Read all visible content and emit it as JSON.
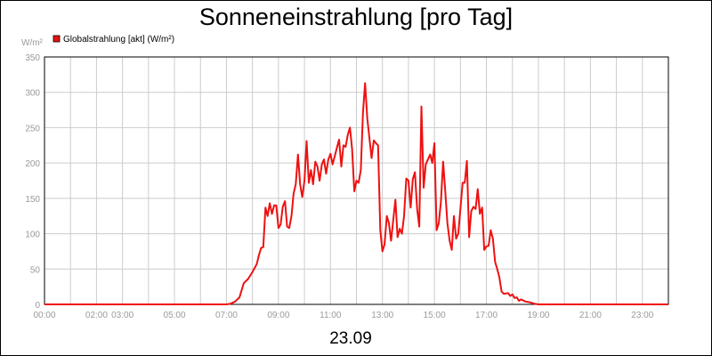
{
  "chart_data": {
    "type": "line",
    "title": "Sonneneinstrahlung [pro Tag]",
    "ylabel": "W/m²",
    "xlabel": "23.09",
    "ylim": [
      0,
      350
    ],
    "xlim": [
      "00:00",
      "24:00"
    ],
    "grid": true,
    "legend_position": "top-left",
    "y_ticks": [
      0,
      50,
      100,
      150,
      200,
      250,
      300,
      350
    ],
    "x_ticks": [
      {
        "time": "00:00",
        "label": "00:00"
      },
      {
        "time": "02:00",
        "label": "02:00"
      },
      {
        "time": "03:00",
        "label": "03:00"
      },
      {
        "time": "05:00",
        "label": "05:00"
      },
      {
        "time": "07:00",
        "label": "07:00"
      },
      {
        "time": "09:00",
        "label": "09:00"
      },
      {
        "time": "11:00",
        "label": "11:00"
      },
      {
        "time": "13:00",
        "label": "13:00"
      },
      {
        "time": "15:00",
        "label": "15:00"
      },
      {
        "time": "17:00",
        "label": "17:00"
      },
      {
        "time": "19:00",
        "label": "19:00"
      },
      {
        "time": "21:00",
        "label": "21:00"
      },
      {
        "time": "23:00",
        "label": "23:00"
      }
    ],
    "series": [
      {
        "name": "Globalstrahlung [akt] (W/m²)",
        "color": "#ee1111",
        "points": [
          [
            "00:00",
            0
          ],
          [
            "07:00",
            0
          ],
          [
            "07:10",
            1
          ],
          [
            "07:20",
            4
          ],
          [
            "07:30",
            10
          ],
          [
            "07:40",
            30
          ],
          [
            "07:50",
            36
          ],
          [
            "08:00",
            46
          ],
          [
            "08:10",
            57
          ],
          [
            "08:15",
            70
          ],
          [
            "08:20",
            80
          ],
          [
            "08:25",
            81
          ],
          [
            "08:30",
            137
          ],
          [
            "08:35",
            125
          ],
          [
            "08:40",
            143
          ],
          [
            "08:45",
            128
          ],
          [
            "08:50",
            140
          ],
          [
            "08:55",
            140
          ],
          [
            "09:00",
            108
          ],
          [
            "09:05",
            113
          ],
          [
            "09:10",
            138
          ],
          [
            "09:15",
            146
          ],
          [
            "09:20",
            110
          ],
          [
            "09:25",
            108
          ],
          [
            "09:30",
            125
          ],
          [
            "09:35",
            157
          ],
          [
            "09:40",
            170
          ],
          [
            "09:45",
            212
          ],
          [
            "09:50",
            170
          ],
          [
            "09:55",
            152
          ],
          [
            "10:00",
            175
          ],
          [
            "10:05",
            231
          ],
          [
            "10:10",
            172
          ],
          [
            "10:15",
            190
          ],
          [
            "10:20",
            170
          ],
          [
            "10:25",
            202
          ],
          [
            "10:30",
            195
          ],
          [
            "10:35",
            175
          ],
          [
            "10:40",
            198
          ],
          [
            "10:45",
            205
          ],
          [
            "10:50",
            185
          ],
          [
            "10:55",
            205
          ],
          [
            "11:00",
            213
          ],
          [
            "11:05",
            198
          ],
          [
            "11:10",
            210
          ],
          [
            "11:15",
            222
          ],
          [
            "11:20",
            233
          ],
          [
            "11:25",
            195
          ],
          [
            "11:30",
            225
          ],
          [
            "11:35",
            223
          ],
          [
            "11:40",
            240
          ],
          [
            "11:45",
            250
          ],
          [
            "11:50",
            220
          ],
          [
            "11:55",
            160
          ],
          [
            "12:00",
            175
          ],
          [
            "12:05",
            172
          ],
          [
            "12:10",
            190
          ],
          [
            "12:15",
            270
          ],
          [
            "12:20",
            313
          ],
          [
            "12:25",
            263
          ],
          [
            "12:30",
            235
          ],
          [
            "12:35",
            207
          ],
          [
            "12:40",
            232
          ],
          [
            "12:45",
            228
          ],
          [
            "12:50",
            225
          ],
          [
            "12:55",
            105
          ],
          [
            "13:00",
            75
          ],
          [
            "13:05",
            85
          ],
          [
            "13:10",
            125
          ],
          [
            "13:15",
            115
          ],
          [
            "13:20",
            90
          ],
          [
            "13:25",
            120
          ],
          [
            "13:30",
            148
          ],
          [
            "13:35",
            95
          ],
          [
            "13:40",
            107
          ],
          [
            "13:45",
            100
          ],
          [
            "13:50",
            125
          ],
          [
            "13:55",
            178
          ],
          [
            "14:00",
            175
          ],
          [
            "14:05",
            137
          ],
          [
            "14:10",
            177
          ],
          [
            "14:15",
            187
          ],
          [
            "14:20",
            135
          ],
          [
            "14:25",
            110
          ],
          [
            "14:30",
            280
          ],
          [
            "14:35",
            165
          ],
          [
            "14:40",
            198
          ],
          [
            "14:45",
            205
          ],
          [
            "14:50",
            212
          ],
          [
            "14:55",
            200
          ],
          [
            "15:00",
            228
          ],
          [
            "15:05",
            105
          ],
          [
            "15:10",
            115
          ],
          [
            "15:15",
            145
          ],
          [
            "15:20",
            202
          ],
          [
            "15:25",
            160
          ],
          [
            "15:30",
            115
          ],
          [
            "15:35",
            90
          ],
          [
            "15:40",
            77
          ],
          [
            "15:45",
            125
          ],
          [
            "15:50",
            93
          ],
          [
            "15:55",
            100
          ],
          [
            "16:00",
            135
          ],
          [
            "16:05",
            172
          ],
          [
            "16:10",
            172
          ],
          [
            "16:15",
            203
          ],
          [
            "16:20",
            95
          ],
          [
            "16:25",
            132
          ],
          [
            "16:30",
            138
          ],
          [
            "16:35",
            135
          ],
          [
            "16:40",
            163
          ],
          [
            "16:45",
            128
          ],
          [
            "16:50",
            137
          ],
          [
            "16:55",
            77
          ],
          [
            "17:00",
            82
          ],
          [
            "17:05",
            83
          ],
          [
            "17:10",
            105
          ],
          [
            "17:15",
            93
          ],
          [
            "17:20",
            60
          ],
          [
            "17:25",
            50
          ],
          [
            "17:30",
            38
          ],
          [
            "17:35",
            18
          ],
          [
            "17:40",
            15
          ],
          [
            "17:50",
            16
          ],
          [
            "17:55",
            12
          ],
          [
            "18:00",
            14
          ],
          [
            "18:05",
            9
          ],
          [
            "18:10",
            10
          ],
          [
            "18:15",
            5
          ],
          [
            "18:20",
            7
          ],
          [
            "18:30",
            4
          ],
          [
            "18:40",
            3
          ],
          [
            "18:50",
            1
          ],
          [
            "19:00",
            0
          ],
          [
            "24:00",
            0
          ]
        ]
      }
    ]
  }
}
